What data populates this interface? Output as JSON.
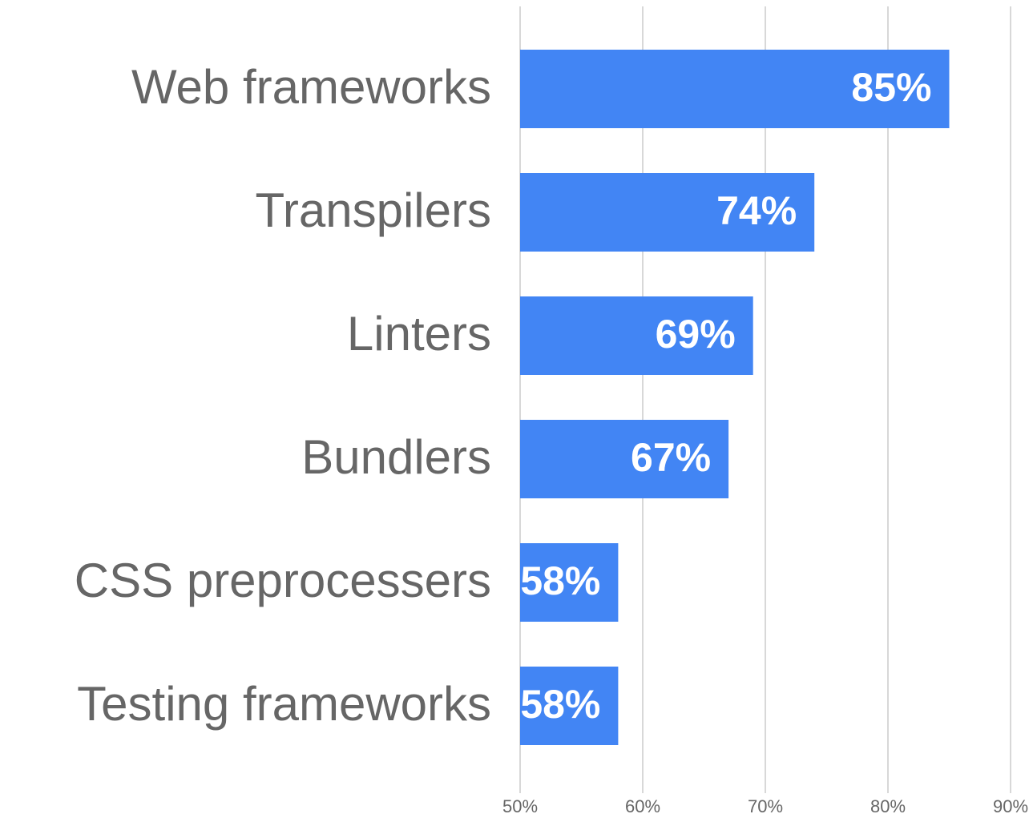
{
  "chart_data": {
    "type": "bar",
    "orientation": "horizontal",
    "categories": [
      "Web frameworks",
      "Transpilers",
      "Linters",
      "Bundlers",
      "CSS preprocessers",
      "Testing frameworks"
    ],
    "values": [
      85,
      74,
      69,
      67,
      58,
      58
    ],
    "value_labels": [
      "85%",
      "74%",
      "69%",
      "67%",
      "58%",
      "58%"
    ],
    "color": "#4285f4",
    "xlim": [
      50,
      90
    ],
    "xticks": [
      {
        "value": 50,
        "label": "50%"
      },
      {
        "value": 60,
        "label": "60%"
      },
      {
        "value": 70,
        "label": "70%"
      },
      {
        "value": 80,
        "label": "80%"
      },
      {
        "value": 90,
        "label": "90%"
      }
    ],
    "grid": true
  }
}
